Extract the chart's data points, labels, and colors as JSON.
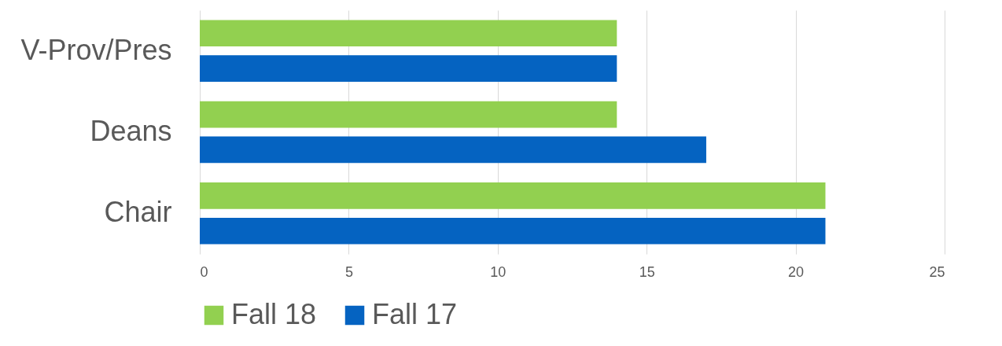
{
  "chart_data": {
    "type": "bar",
    "orientation": "horizontal",
    "categories": [
      "V-Prov/Pres",
      "Deans",
      "Chair"
    ],
    "series": [
      {
        "name": "Fall 18",
        "color": "#92d050",
        "values": [
          14,
          14,
          21
        ]
      },
      {
        "name": "Fall 17",
        "color": "#0563c1",
        "values": [
          14,
          17,
          21
        ]
      }
    ],
    "xlim": [
      0,
      25
    ],
    "xticks": [
      0,
      5,
      10,
      15,
      20,
      25
    ],
    "grid": "x",
    "legend": "bottom"
  }
}
